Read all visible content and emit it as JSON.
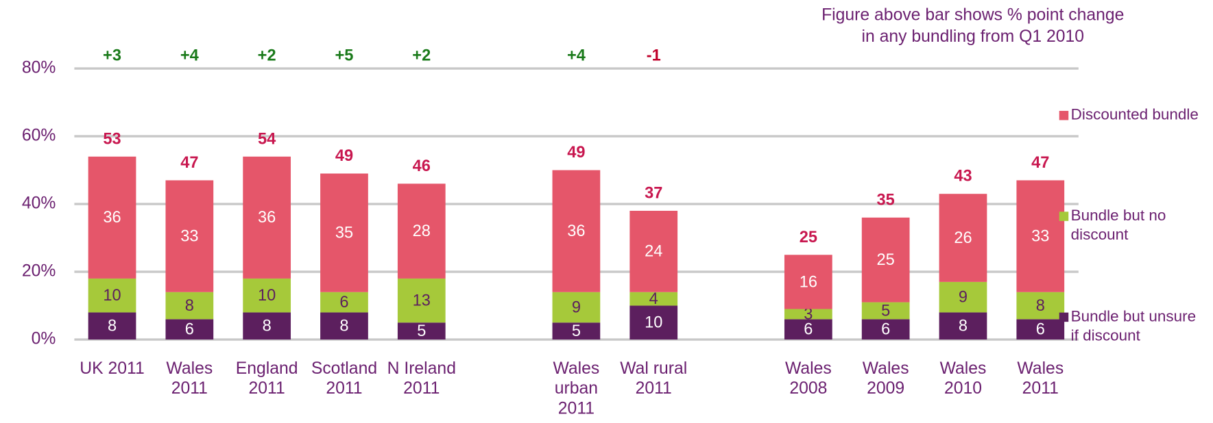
{
  "chart_data": {
    "type": "stacked-bar",
    "note": "Figure above bar shows % point change in any bundling from Q1 2010",
    "categories": [
      "UK 2011",
      "Wales 2011",
      "England 2011",
      "Scotland 2011",
      "N Ireland 2011",
      null,
      "Wales urban 2011",
      "Wal rural 2011",
      null,
      "Wales 2008",
      "Wales 2009",
      "Wales 2010",
      "Wales 2011"
    ],
    "series": [
      {
        "name": "Bundle but unsure if discount",
        "color": "#5c1f5e",
        "values": [
          8,
          6,
          8,
          8,
          5,
          null,
          5,
          10,
          null,
          6,
          6,
          8,
          6
        ]
      },
      {
        "name": "Bundle but no discount",
        "color": "#a6c93a",
        "values": [
          10,
          8,
          10,
          6,
          13,
          null,
          9,
          4,
          null,
          3,
          5,
          9,
          8
        ]
      },
      {
        "name": "Discounted bundle",
        "color": "#e5566a",
        "values": [
          36,
          33,
          36,
          35,
          28,
          null,
          36,
          24,
          null,
          16,
          25,
          26,
          33
        ]
      }
    ],
    "totals": [
      53,
      47,
      54,
      49,
      46,
      null,
      49,
      37,
      null,
      25,
      35,
      43,
      47
    ],
    "changes": [
      3,
      4,
      2,
      5,
      2,
      null,
      4,
      -1,
      null,
      null,
      null,
      null,
      null
    ],
    "change_labels": [
      "+3",
      "+4",
      "+2",
      "+5",
      "+2",
      null,
      "+4",
      "-1",
      null,
      null,
      null,
      null,
      null
    ],
    "ylim": [
      0,
      80
    ],
    "yticks": [
      {
        "value": 0,
        "label": "0%"
      },
      {
        "value": 20,
        "label": "20%"
      },
      {
        "value": 40,
        "label": "40%"
      },
      {
        "value": 60,
        "label": "60%"
      },
      {
        "value": 80,
        "label": "80%"
      }
    ],
    "grid": true,
    "legend": "right"
  }
}
